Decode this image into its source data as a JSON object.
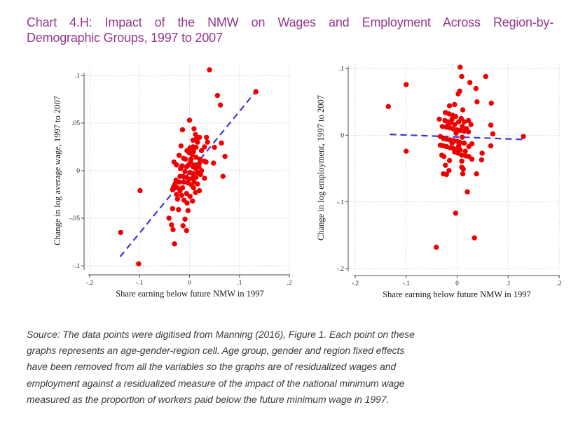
{
  "page": {
    "title_line1": "Chart 4.H: Impact of the NMW on Wages and Employment Across Region-by-",
    "title_line2": "Demographic Groups, 1997 to 2007",
    "title_color": "#93388d"
  },
  "source_note": {
    "lines": [
      "Source: The data points were digitised from Manning (2016), Figure 1. Each point on these",
      "graphs represents an age-gender-region cell. Age group, gender and region fixed effects",
      "have been removed from all the variables so the graphs are of residualized wages and",
      "employment against a residualized measure of the impact of the national minimum wage",
      "measured as the proportion of workers paid below the future minimum wage in 1997."
    ]
  },
  "chart_data": [
    {
      "type": "scatter",
      "title": "",
      "xlabel": "Share earning below future NMW in 1997",
      "ylabel": "Change in log average wage, 1997 to 2007",
      "xlim": [
        -0.21,
        0.205
      ],
      "ylim": [
        -0.105,
        0.112
      ],
      "x_ticks": {
        "values": [
          -0.2,
          -0.1,
          0,
          0.1,
          0.2
        ],
        "labels": [
          "-.2",
          "-.1",
          "0",
          ".1",
          ".2"
        ]
      },
      "y_ticks": {
        "values": [
          0.1,
          0.05,
          0,
          -0.05,
          -0.1
        ],
        "labels": [
          ".1",
          ".05",
          "0",
          "-.05",
          "-.1"
        ]
      },
      "grid": "dotted",
      "legend": "none",
      "marker_color": "#ee0000",
      "trend_line": {
        "style": "dashed",
        "color": "#3b35dd",
        "x1": -0.139,
        "y1": -0.0905,
        "x2": 0.134,
        "y2": 0.084
      },
      "points": [
        [
          0.04,
          0.106
        ],
        [
          0.133,
          0.083
        ],
        [
          0.056,
          0.079
        ],
        [
          0.062,
          0.069
        ],
        [
          0.0,
          0.053
        ],
        [
          -0.014,
          0.043
        ],
        [
          0.009,
          0.044
        ],
        [
          0.012,
          0.038
        ],
        [
          0.02,
          0.035
        ],
        [
          0.034,
          0.035
        ],
        [
          0.036,
          0.03
        ],
        [
          0.007,
          0.032
        ],
        [
          0.013,
          0.033
        ],
        [
          -0.017,
          0.026
        ],
        [
          0.001,
          0.024
        ],
        [
          0.007,
          0.025
        ],
        [
          0.016,
          0.03
        ],
        [
          0.013,
          0.0245
        ],
        [
          0.03,
          0.025
        ],
        [
          0.05,
          0.0245
        ],
        [
          0.064,
          0.029
        ],
        [
          0.024,
          0.021
        ],
        [
          0.008,
          0.02
        ],
        [
          -0.005,
          0.021
        ],
        [
          -0.001,
          0.019
        ],
        [
          0.005,
          0.017
        ],
        [
          -0.021,
          0.016
        ],
        [
          -0.012,
          0.013
        ],
        [
          0.013,
          0.014
        ],
        [
          0.021,
          0.012
        ],
        [
          0.071,
          0.015
        ],
        [
          -0.031,
          0.009
        ],
        [
          0.002,
          0.009
        ],
        [
          0.03,
          0.01
        ],
        [
          0.033,
          0.009
        ],
        [
          0.048,
          0.008
        ],
        [
          -0.026,
          0.006
        ],
        [
          -0.015,
          0.005
        ],
        [
          -0.006,
          0.004
        ],
        [
          0.007,
          0.004
        ],
        [
          0.013,
          0.002
        ],
        [
          0.019,
          0.004
        ],
        [
          0.024,
          0.0
        ],
        [
          0.001,
          -0.002
        ],
        [
          0.007,
          -0.003
        ],
        [
          0.016,
          -0.002
        ],
        [
          -0.019,
          -0.006
        ],
        [
          -0.013,
          -0.006
        ],
        [
          -0.006,
          -0.007
        ],
        [
          0.006,
          -0.008
        ],
        [
          0.013,
          -0.007
        ],
        [
          0.03,
          -0.008
        ],
        [
          0.067,
          -0.006
        ],
        [
          -0.027,
          -0.01
        ],
        [
          -0.02,
          -0.012
        ],
        [
          -0.011,
          -0.012
        ],
        [
          -0.003,
          -0.013
        ],
        [
          0.009,
          -0.012
        ],
        [
          0.016,
          -0.014
        ],
        [
          -0.032,
          -0.017
        ],
        [
          -0.024,
          -0.018
        ],
        [
          -0.014,
          -0.018
        ],
        [
          0.008,
          -0.018
        ],
        [
          -0.099,
          -0.021
        ],
        [
          -0.034,
          -0.02
        ],
        [
          -0.019,
          -0.021
        ],
        [
          0.02,
          -0.021
        ],
        [
          -0.026,
          -0.025
        ],
        [
          -0.016,
          -0.026
        ],
        [
          -0.006,
          -0.024
        ],
        [
          0.001,
          -0.027
        ],
        [
          -0.024,
          -0.03
        ],
        [
          -0.011,
          -0.031
        ],
        [
          0.006,
          -0.032
        ],
        [
          -0.005,
          -0.034
        ],
        [
          -0.034,
          -0.04
        ],
        [
          -0.022,
          -0.041
        ],
        [
          -0.003,
          -0.042
        ],
        [
          -0.041,
          -0.05
        ],
        [
          -0.009,
          -0.051
        ],
        [
          -0.036,
          -0.057
        ],
        [
          -0.013,
          -0.058
        ],
        [
          -0.033,
          -0.062
        ],
        [
          -0.006,
          -0.063
        ],
        [
          -0.138,
          -0.065
        ],
        [
          -0.03,
          -0.077
        ],
        [
          -0.102,
          -0.098
        ],
        [
          0.003,
          0.012
        ],
        [
          -0.008,
          0.012
        ],
        [
          0.02,
          0.008
        ],
        [
          -0.002,
          0.006
        ],
        [
          0.01,
          0.006
        ],
        [
          -0.018,
          0.002
        ],
        [
          -0.009,
          -0.001
        ],
        [
          0.022,
          -0.004
        ],
        [
          -0.001,
          -0.009
        ],
        [
          0.004,
          -0.015
        ],
        [
          -0.029,
          -0.014
        ],
        [
          0.012,
          -0.023
        ]
      ]
    },
    {
      "type": "scatter",
      "title": "",
      "xlabel": "Share earning below future NMW in 1997",
      "ylabel": "Change in log employment, 1997 to 2007",
      "xlim": [
        -0.21,
        0.205
      ],
      "ylim": [
        -0.21,
        0.11
      ],
      "x_ticks": {
        "values": [
          -0.2,
          -0.1,
          0,
          0.1,
          0.2
        ],
        "labels": [
          "-.2",
          "-.1",
          "0",
          ".1",
          ".2"
        ]
      },
      "y_ticks": {
        "values": [
          0.1,
          0,
          -0.1,
          -0.2
        ],
        "labels": [
          ".1",
          "0",
          "-.1",
          "-.2"
        ]
      },
      "grid": "dotted",
      "legend": "none",
      "marker_color": "#ee0000",
      "trend_line": {
        "style": "dashed",
        "color": "#3b35dd",
        "x1": -0.132,
        "y1": 0.0012,
        "x2": 0.131,
        "y2": -0.0065
      },
      "points": [
        [
          0.006,
          0.102
        ],
        [
          0.009,
          0.088
        ],
        [
          0.056,
          0.088
        ],
        [
          -0.1,
          0.076
        ],
        [
          0.025,
          0.079
        ],
        [
          0.037,
          0.07
        ],
        [
          0.005,
          0.066
        ],
        [
          0.039,
          0.05
        ],
        [
          0.067,
          0.048
        ],
        [
          -0.135,
          0.043
        ],
        [
          0.002,
          0.062
        ],
        [
          -0.015,
          0.044
        ],
        [
          -0.005,
          0.046
        ],
        [
          0.011,
          0.038
        ],
        [
          -0.023,
          0.034
        ],
        [
          -0.016,
          0.032
        ],
        [
          -0.009,
          0.03
        ],
        [
          -0.003,
          0.028
        ],
        [
          0.008,
          0.025
        ],
        [
          -0.035,
          0.024
        ],
        [
          -0.024,
          0.022
        ],
        [
          -0.018,
          0.02
        ],
        [
          -0.012,
          0.019
        ],
        [
          -0.005,
          0.016
        ],
        [
          0.014,
          0.02
        ],
        [
          0.022,
          0.022
        ],
        [
          0.027,
          0.016
        ],
        [
          0.066,
          0.015
        ],
        [
          -0.029,
          0.013
        ],
        [
          -0.021,
          0.012
        ],
        [
          -0.014,
          0.011
        ],
        [
          -0.007,
          0.009
        ],
        [
          0.0,
          0.008
        ],
        [
          0.006,
          0.007
        ],
        [
          0.014,
          0.006
        ],
        [
          0.022,
          0.005
        ],
        [
          0.07,
          0.002
        ],
        [
          0.13,
          -0.002
        ],
        [
          -0.033,
          -0.002
        ],
        [
          -0.027,
          -0.005
        ],
        [
          -0.021,
          -0.006
        ],
        [
          -0.014,
          -0.007
        ],
        [
          -0.007,
          -0.008
        ],
        [
          0.0,
          -0.009
        ],
        [
          0.006,
          -0.011
        ],
        [
          0.014,
          -0.012
        ],
        [
          -0.033,
          -0.015
        ],
        [
          -0.027,
          -0.016
        ],
        [
          -0.021,
          -0.017
        ],
        [
          -0.014,
          -0.019
        ],
        [
          -0.007,
          -0.02
        ],
        [
          0.0,
          -0.021
        ],
        [
          0.006,
          -0.022
        ],
        [
          0.023,
          -0.017
        ],
        [
          0.029,
          -0.013
        ],
        [
          0.066,
          -0.016
        ],
        [
          -0.1,
          -0.024
        ],
        [
          -0.005,
          -0.025
        ],
        [
          0.002,
          -0.027
        ],
        [
          0.049,
          -0.027
        ],
        [
          0.009,
          -0.03
        ],
        [
          0.017,
          -0.031
        ],
        [
          0.023,
          -0.032
        ],
        [
          -0.03,
          -0.03
        ],
        [
          -0.026,
          -0.032
        ],
        [
          0.029,
          -0.036
        ],
        [
          0.048,
          -0.037
        ],
        [
          -0.015,
          -0.038
        ],
        [
          0.009,
          -0.039
        ],
        [
          -0.023,
          -0.045
        ],
        [
          -0.016,
          -0.053
        ],
        [
          0.009,
          -0.048
        ],
        [
          0.012,
          -0.051
        ],
        [
          -0.027,
          -0.058
        ],
        [
          -0.021,
          -0.059
        ],
        [
          0.011,
          -0.058
        ],
        [
          0.038,
          -0.058
        ],
        [
          0.02,
          -0.085
        ],
        [
          -0.003,
          -0.117
        ],
        [
          0.034,
          -0.154
        ],
        [
          -0.041,
          -0.168
        ],
        [
          -0.01,
          0.024
        ],
        [
          0.003,
          0.02
        ],
        [
          -0.019,
          0.014
        ],
        [
          0.01,
          0.013
        ],
        [
          0.018,
          0.01
        ],
        [
          -0.002,
          0.003
        ],
        [
          0.01,
          -0.003
        ],
        [
          -0.01,
          -0.012
        ],
        [
          0.003,
          -0.016
        ],
        [
          0.016,
          -0.024
        ]
      ]
    }
  ]
}
